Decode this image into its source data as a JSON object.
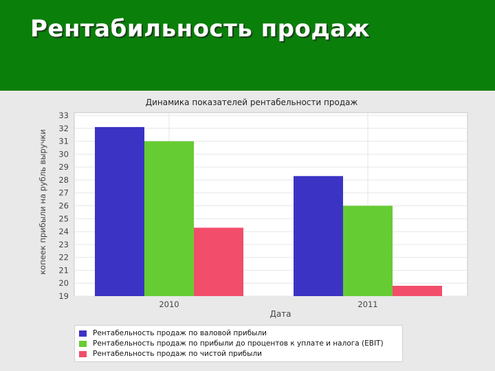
{
  "slide": {
    "title": "Рентабильность продаж"
  },
  "chart_data": {
    "type": "bar",
    "title": "Динамика показателей рентабельности продаж",
    "xlabel": "Дата",
    "ylabel": "копеек прибыли на рубль выручки",
    "categories": [
      "2010",
      "2011"
    ],
    "ylim": [
      19,
      33
    ],
    "yticks": [
      19,
      20,
      21,
      22,
      23,
      24,
      25,
      26,
      27,
      28,
      29,
      30,
      31,
      32,
      33
    ],
    "grid": true,
    "legend_position": "bottom",
    "series": [
      {
        "name": "Рентабельность продаж по валовой прибыли",
        "color": "#3b33c4",
        "values": [
          32.1,
          28.3
        ]
      },
      {
        "name": "Рентабельность продаж по прибыли до процентов к уплате и налога (EBIT)",
        "color": "#66cc33",
        "values": [
          31.0,
          26.0
        ]
      },
      {
        "name": "Рентабельность продаж по чистой прибыли",
        "color": "#f24d6a",
        "values": [
          24.3,
          19.8
        ]
      }
    ]
  }
}
